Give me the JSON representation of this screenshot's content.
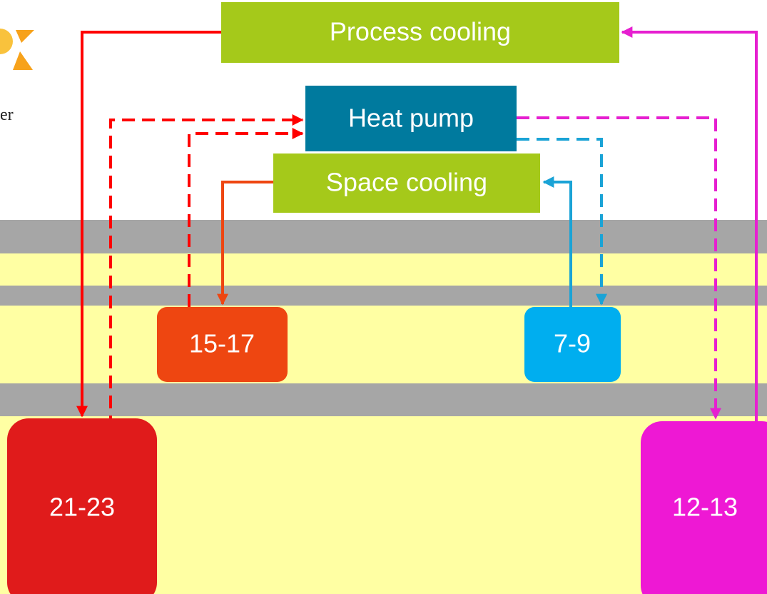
{
  "logo_text": "er",
  "nodes": [
    {
      "label": "Process cooling"
    },
    {
      "label": "Heat pump"
    },
    {
      "label": "Space cooling"
    },
    {
      "label": "15-17"
    },
    {
      "label": "7-9"
    },
    {
      "label": "21-23"
    },
    {
      "label": "12-13"
    }
  ]
}
